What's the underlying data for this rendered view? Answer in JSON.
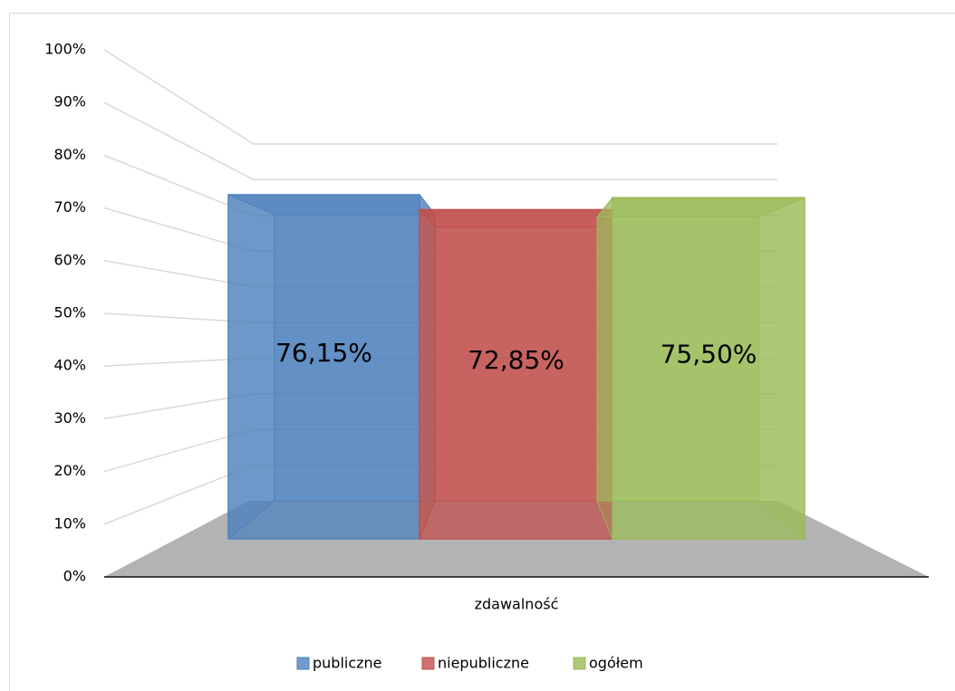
{
  "chart_data": {
    "type": "bar3d",
    "categories": [
      "zdawalność"
    ],
    "series": [
      {
        "name": "publiczne",
        "color": "#4f81bd",
        "values": [
          76.15
        ],
        "value_labels": [
          "76,15%"
        ]
      },
      {
        "name": "niepubliczne",
        "color": "#c0504d",
        "values": [
          72.85
        ],
        "value_labels": [
          "72,85%"
        ]
      },
      {
        "name": "ogółem",
        "color": "#9bbb59",
        "values": [
          75.5
        ],
        "value_labels": [
          "75,50%"
        ]
      }
    ],
    "ylim": [
      0,
      100
    ],
    "yticks": [
      {
        "value": 0,
        "label": "0%"
      },
      {
        "value": 10,
        "label": "10%"
      },
      {
        "value": 20,
        "label": "20%"
      },
      {
        "value": 30,
        "label": "30%"
      },
      {
        "value": 40,
        "label": "40%"
      },
      {
        "value": 50,
        "label": "50%"
      },
      {
        "value": 60,
        "label": "60%"
      },
      {
        "value": 70,
        "label": "70%"
      },
      {
        "value": 80,
        "label": "80%"
      },
      {
        "value": 90,
        "label": "90%"
      },
      {
        "value": 100,
        "label": "100%"
      }
    ],
    "grid": true,
    "legend": "bottom"
  }
}
